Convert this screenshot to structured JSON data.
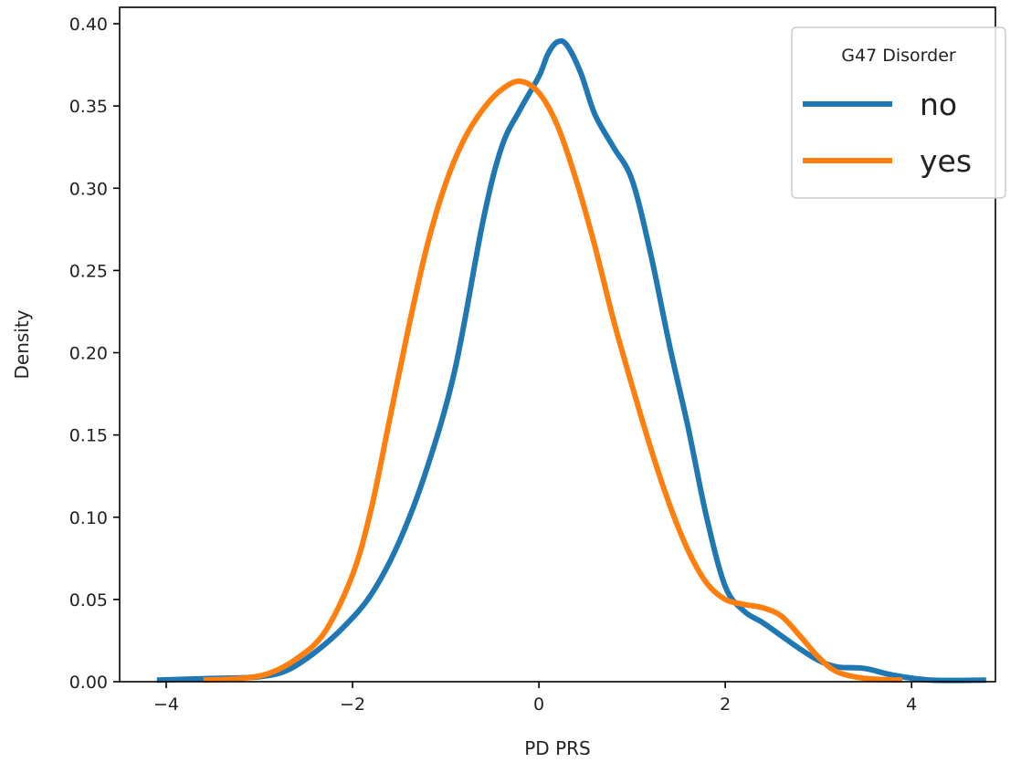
{
  "chart_data": {
    "type": "line",
    "xlabel": "PD PRS",
    "ylabel": "Density",
    "xlim": [
      -4.5,
      4.9
    ],
    "ylim": [
      0,
      0.41
    ],
    "x_ticks": [
      -4,
      -2,
      0,
      2,
      4
    ],
    "x_tick_labels": [
      "−4",
      "−2",
      "0",
      "2",
      "4"
    ],
    "y_ticks": [
      0.0,
      0.05,
      0.1,
      0.15,
      0.2,
      0.25,
      0.3,
      0.35,
      0.4
    ],
    "y_tick_labels": [
      "0.00",
      "0.05",
      "0.10",
      "0.15",
      "0.20",
      "0.25",
      "0.30",
      "0.35",
      "0.40"
    ],
    "grid": false,
    "legend": {
      "title": "G47 Disorder",
      "placement": "top-right"
    },
    "series": [
      {
        "name": "no",
        "color": "#1f77b4",
        "points": [
          [
            -4.1,
            0.001
          ],
          [
            -3.5,
            0.002
          ],
          [
            -3.0,
            0.003
          ],
          [
            -2.7,
            0.007
          ],
          [
            -2.4,
            0.018
          ],
          [
            -2.1,
            0.033
          ],
          [
            -1.8,
            0.053
          ],
          [
            -1.5,
            0.085
          ],
          [
            -1.2,
            0.13
          ],
          [
            -0.9,
            0.19
          ],
          [
            -0.6,
            0.28
          ],
          [
            -0.4,
            0.325
          ],
          [
            -0.2,
            0.348
          ],
          [
            0.0,
            0.368
          ],
          [
            0.1,
            0.382
          ],
          [
            0.2,
            0.389
          ],
          [
            0.3,
            0.387
          ],
          [
            0.45,
            0.37
          ],
          [
            0.6,
            0.345
          ],
          [
            0.8,
            0.325
          ],
          [
            1.0,
            0.305
          ],
          [
            1.2,
            0.26
          ],
          [
            1.4,
            0.205
          ],
          [
            1.6,
            0.155
          ],
          [
            1.8,
            0.1
          ],
          [
            2.0,
            0.058
          ],
          [
            2.2,
            0.043
          ],
          [
            2.4,
            0.036
          ],
          [
            2.6,
            0.028
          ],
          [
            2.8,
            0.02
          ],
          [
            3.0,
            0.013
          ],
          [
            3.2,
            0.009
          ],
          [
            3.5,
            0.008
          ],
          [
            3.8,
            0.004
          ],
          [
            4.2,
            0.001
          ],
          [
            4.8,
            0.001
          ]
        ]
      },
      {
        "name": "yes",
        "color": "#ff7f0e",
        "points": [
          [
            -3.6,
            0.001
          ],
          [
            -3.2,
            0.002
          ],
          [
            -2.9,
            0.005
          ],
          [
            -2.6,
            0.014
          ],
          [
            -2.3,
            0.03
          ],
          [
            -2.0,
            0.065
          ],
          [
            -1.8,
            0.105
          ],
          [
            -1.6,
            0.16
          ],
          [
            -1.4,
            0.215
          ],
          [
            -1.2,
            0.265
          ],
          [
            -1.0,
            0.303
          ],
          [
            -0.8,
            0.33
          ],
          [
            -0.6,
            0.348
          ],
          [
            -0.4,
            0.36
          ],
          [
            -0.2,
            0.365
          ],
          [
            0.0,
            0.358
          ],
          [
            0.2,
            0.338
          ],
          [
            0.4,
            0.305
          ],
          [
            0.6,
            0.265
          ],
          [
            0.8,
            0.22
          ],
          [
            1.0,
            0.18
          ],
          [
            1.2,
            0.142
          ],
          [
            1.4,
            0.108
          ],
          [
            1.6,
            0.08
          ],
          [
            1.8,
            0.06
          ],
          [
            2.0,
            0.05
          ],
          [
            2.2,
            0.047
          ],
          [
            2.4,
            0.045
          ],
          [
            2.6,
            0.04
          ],
          [
            2.8,
            0.028
          ],
          [
            3.0,
            0.015
          ],
          [
            3.2,
            0.006
          ],
          [
            3.5,
            0.002
          ],
          [
            3.9,
            0.001
          ]
        ]
      }
    ]
  }
}
